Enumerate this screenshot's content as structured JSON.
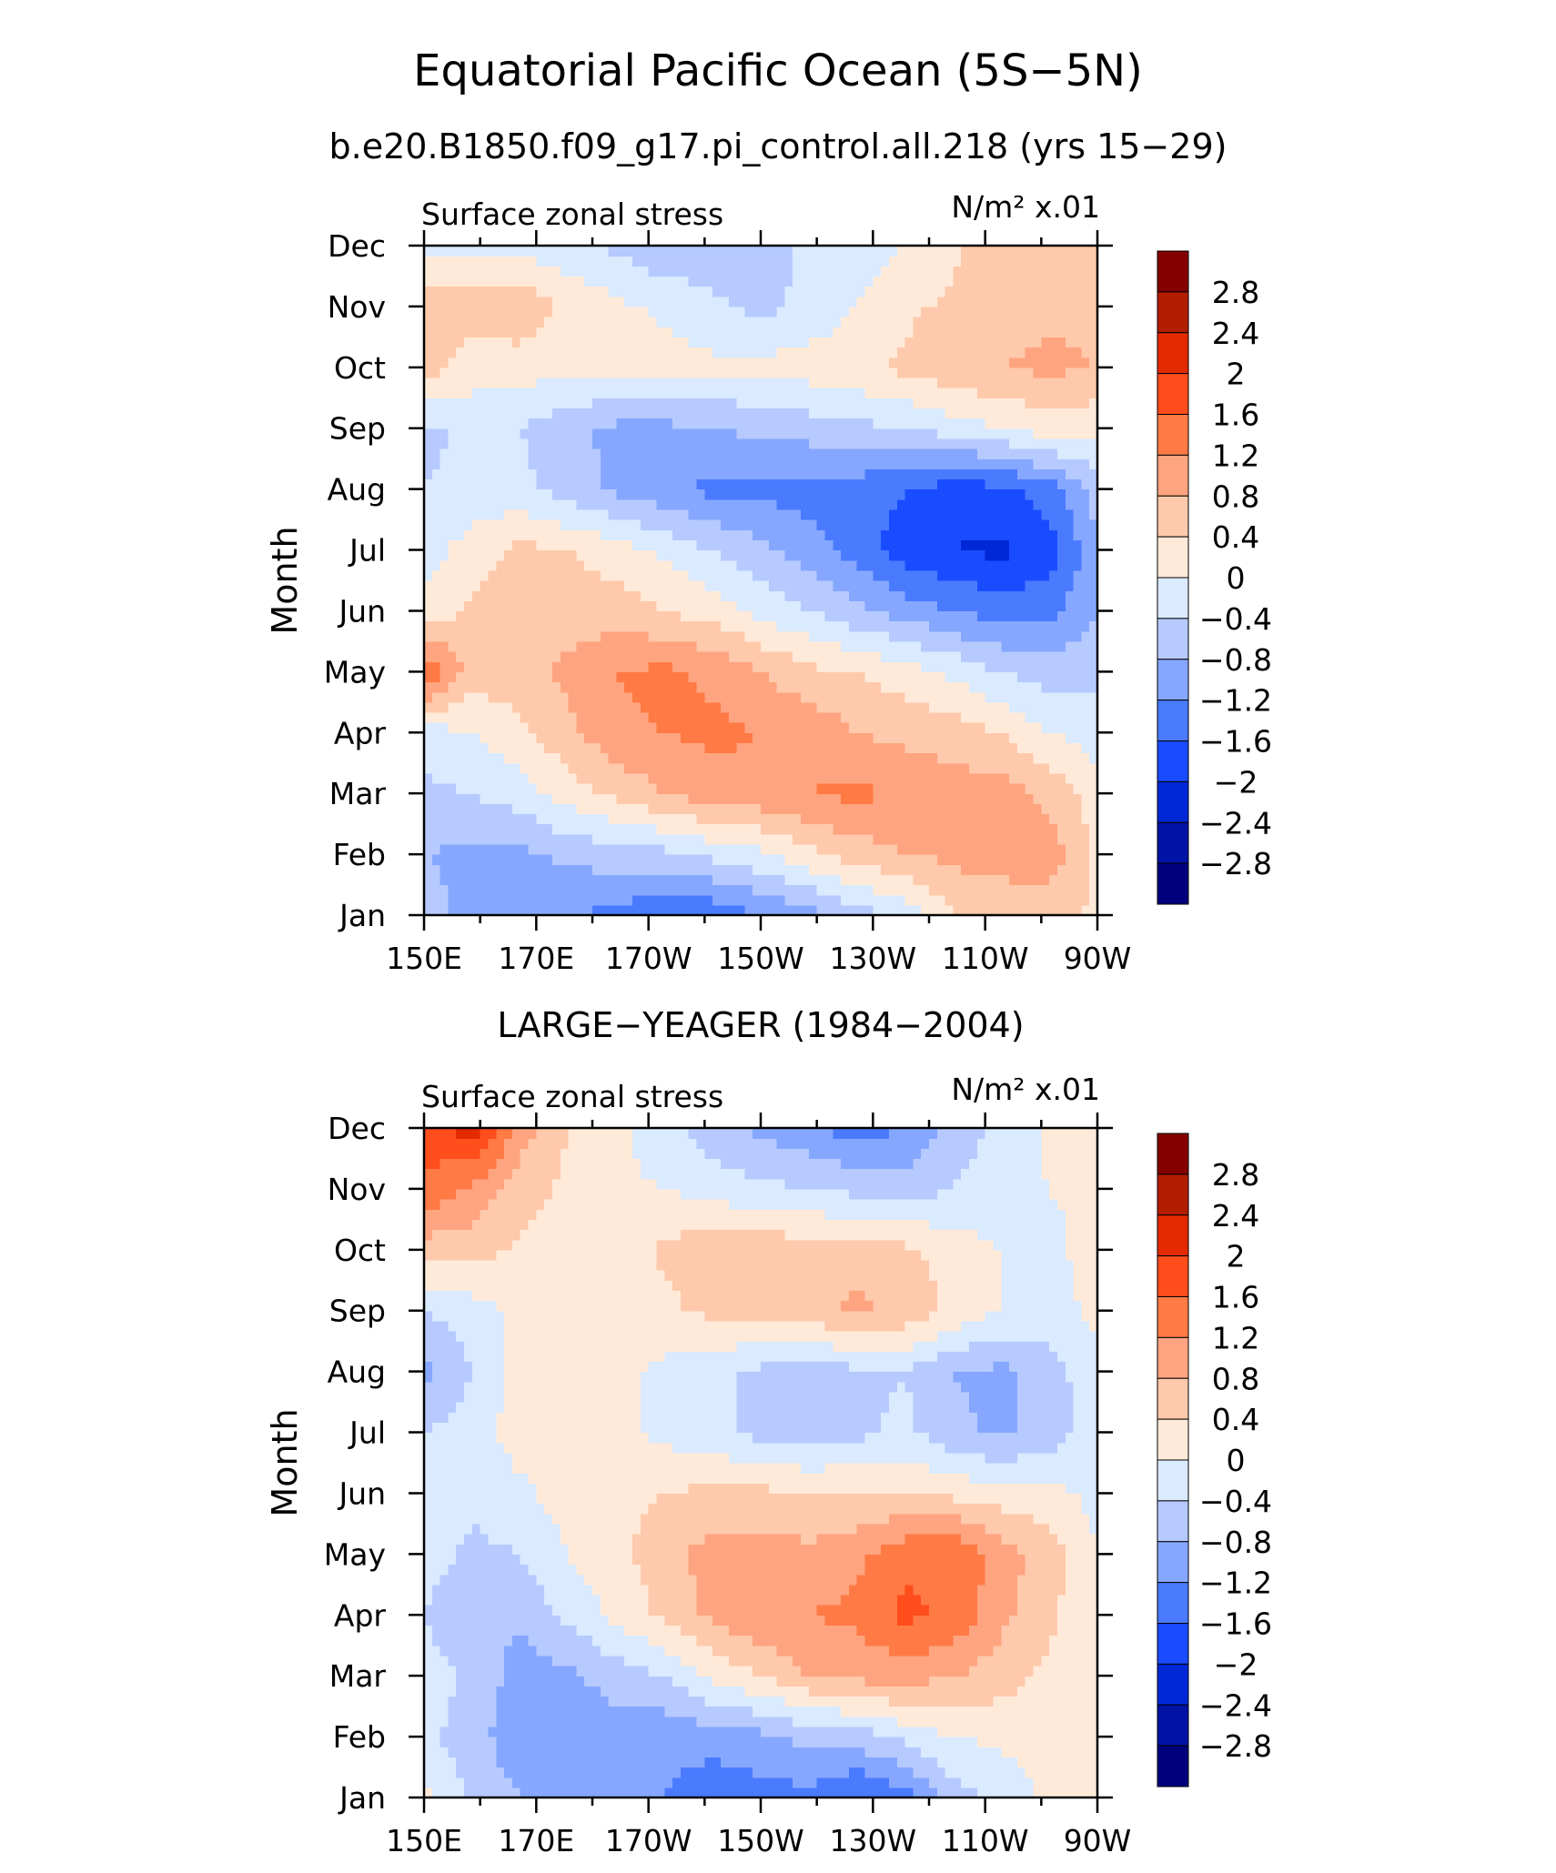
{
  "figure": {
    "title": "Equatorial Pacific Ocean (5S−5N)",
    "subtitle": "b.e20.B1850.f09_g17.pi_control.all.218 (yrs 15−29)"
  },
  "chart_data": [
    {
      "type": "heatmap",
      "panel_title": "",
      "left_label": "Surface zonal stress",
      "units": "N/m² x.01",
      "ylabel": "Month",
      "x_labels": [
        "150E",
        "170E",
        "170W",
        "150W",
        "130W",
        "110W",
        "90W"
      ],
      "y_labels": [
        "Jan",
        "Feb",
        "Mar",
        "Apr",
        "May",
        "Jun",
        "Jul",
        "Aug",
        "Sep",
        "Oct",
        "Nov",
        "Dec"
      ],
      "colorbar_labels": [
        "2.8",
        "2.4",
        "2",
        "1.6",
        "1.2",
        "0.8",
        "0.4",
        "0",
        "−0.4",
        "−0.8",
        "−1.2",
        "−1.6",
        "−2",
        "−2.4",
        "−2.8"
      ],
      "levels": [
        -2.8,
        -2.4,
        -2.0,
        -1.6,
        -1.2,
        -0.8,
        -0.4,
        0,
        0.4,
        0.8,
        1.2,
        1.6,
        2.0,
        2.4,
        2.8
      ],
      "z": [
        [
          -0.6,
          -1.0,
          -1.2,
          -1.2,
          -1.3,
          -1.6,
          -1.5,
          -1.2,
          -1.0,
          -0.6,
          -0.3,
          0.4,
          0.5,
          0.6,
          0.3
        ],
        [
          -0.8,
          -0.9,
          -0.9,
          -0.7,
          -0.6,
          -0.5,
          -0.3,
          -0.1,
          0.3,
          0.6,
          0.8,
          0.9,
          1.0,
          1.0,
          0.3
        ],
        [
          -0.5,
          -0.4,
          -0.2,
          0.2,
          0.5,
          0.8,
          1.0,
          1.1,
          1.2,
          1.3,
          1.1,
          1.0,
          1.0,
          0.7,
          0.2
        ],
        [
          -0.2,
          0.0,
          0.3,
          0.7,
          1.1,
          1.2,
          1.3,
          1.2,
          1.1,
          0.8,
          0.7,
          0.6,
          0.4,
          0.0,
          -0.2
        ],
        [
          1.6,
          0.6,
          0.6,
          0.9,
          1.2,
          1.3,
          1.1,
          0.8,
          0.5,
          0.4,
          0.2,
          -0.1,
          -0.4,
          -0.6,
          -0.5
        ],
        [
          0.1,
          0.5,
          0.6,
          0.6,
          0.6,
          0.4,
          0.2,
          -0.1,
          -0.4,
          -0.7,
          -1.0,
          -1.2,
          -1.4,
          -1.3,
          -0.8
        ],
        [
          -0.2,
          0.2,
          0.5,
          0.4,
          0.2,
          -0.1,
          -0.4,
          -0.7,
          -1.0,
          -1.4,
          -1.8,
          -2.0,
          -2.1,
          -1.8,
          -0.9
        ],
        [
          -0.4,
          -0.3,
          -0.3,
          -0.6,
          -0.9,
          -1.1,
          -1.3,
          -1.3,
          -1.4,
          -1.4,
          -1.6,
          -1.8,
          -1.7,
          -1.4,
          -0.6
        ],
        [
          -0.5,
          -0.3,
          -0.4,
          -0.7,
          -0.9,
          -0.9,
          -0.8,
          -0.7,
          -0.6,
          -0.5,
          -0.4,
          -0.2,
          0.0,
          0.2,
          0.1
        ],
        [
          0.6,
          0.2,
          0.2,
          0.1,
          0.2,
          0.2,
          0.1,
          0.1,
          0.2,
          0.3,
          0.5,
          0.7,
          0.8,
          0.9,
          0.8
        ],
        [
          0.7,
          0.6,
          0.7,
          0.3,
          0.1,
          -0.1,
          -0.3,
          -0.5,
          -0.3,
          0.0,
          0.3,
          0.5,
          0.6,
          0.7,
          0.7
        ],
        [
          -0.2,
          -0.1,
          -0.1,
          -0.3,
          -0.5,
          -0.7,
          -0.7,
          -0.6,
          -0.3,
          -0.2,
          0.0,
          0.3,
          0.7,
          0.7,
          0.7
        ]
      ]
    },
    {
      "type": "heatmap",
      "panel_title": "LARGE−YEAGER (1984−2004)",
      "left_label": "Surface zonal stress",
      "units": "N/m² x.01",
      "ylabel": "Month",
      "x_labels": [
        "150E",
        "170E",
        "170W",
        "150W",
        "130W",
        "110W",
        "90W"
      ],
      "y_labels": [
        "Jan",
        "Feb",
        "Mar",
        "Apr",
        "May",
        "Jun",
        "Jul",
        "Aug",
        "Sep",
        "Oct",
        "Nov",
        "Dec"
      ],
      "colorbar_labels": [
        "2.8",
        "2.4",
        "2",
        "1.6",
        "1.2",
        "0.8",
        "0.4",
        "0",
        "−0.4",
        "−0.8",
        "−1.2",
        "−1.6",
        "−2",
        "−2.4",
        "−2.8"
      ],
      "levels": [
        -2.8,
        -2.4,
        -2.0,
        -1.6,
        -1.2,
        -0.8,
        -0.4,
        0,
        0.4,
        0.8,
        1.2,
        1.6,
        2.0,
        2.4,
        2.8
      ],
      "z": [
        [
          0.1,
          -0.5,
          -0.8,
          -0.9,
          -1.0,
          -1.2,
          -1.5,
          -1.4,
          -1.3,
          -1.7,
          -1.4,
          -0.6,
          -0.3,
          0.1,
          0.2
        ],
        [
          -0.3,
          -0.6,
          -1.1,
          -1.1,
          -1.0,
          -1.1,
          -1.0,
          -0.9,
          -0.7,
          -0.6,
          -0.3,
          0.0,
          0.1,
          0.1,
          0.2
        ],
        [
          -0.2,
          -0.5,
          -1.0,
          -0.9,
          -0.6,
          -0.4,
          0.1,
          0.4,
          0.8,
          0.9,
          1.0,
          0.8,
          0.6,
          0.3,
          0.1
        ],
        [
          -0.4,
          -0.8,
          -0.7,
          -0.3,
          0.1,
          0.5,
          0.9,
          1.2,
          1.2,
          1.3,
          1.7,
          1.5,
          0.9,
          0.5,
          0.0
        ],
        [
          -0.2,
          -0.5,
          -0.4,
          0.0,
          0.3,
          0.6,
          1.0,
          1.0,
          0.9,
          1.1,
          1.5,
          1.6,
          1.0,
          0.6,
          0.0
        ],
        [
          -0.1,
          -0.3,
          -0.1,
          0.2,
          0.3,
          0.4,
          0.5,
          0.5,
          0.4,
          0.4,
          0.4,
          0.3,
          0.2,
          0.1,
          -0.1
        ],
        [
          -0.4,
          -0.2,
          0.2,
          0.2,
          0.1,
          -0.1,
          -0.3,
          -0.5,
          -0.6,
          -0.5,
          -0.3,
          -0.7,
          -0.9,
          -0.6,
          -0.2
        ],
        [
          -0.9,
          -0.4,
          0.2,
          0.2,
          0.1,
          -0.1,
          -0.3,
          -0.5,
          -0.6,
          -0.5,
          -0.4,
          -0.8,
          -0.9,
          -0.6,
          -0.1
        ],
        [
          -0.4,
          -0.2,
          0.1,
          0.2,
          0.1,
          0.3,
          0.5,
          0.6,
          0.6,
          0.9,
          0.7,
          0.3,
          0.0,
          -0.2,
          0.1
        ],
        [
          0.6,
          0.6,
          0.3,
          0.2,
          0.1,
          0.5,
          0.7,
          0.7,
          0.6,
          0.6,
          0.5,
          0.2,
          0.0,
          -0.2,
          0.3
        ],
        [
          1.5,
          1.1,
          0.6,
          0.3,
          0.1,
          0.0,
          -0.2,
          -0.3,
          -0.4,
          -0.5,
          -0.6,
          -0.4,
          -0.2,
          0.0,
          0.2
        ],
        [
          1.8,
          2.2,
          1.0,
          0.4,
          0.1,
          -0.3,
          -0.6,
          -0.9,
          -1.1,
          -1.4,
          -1.2,
          -0.6,
          -0.3,
          0.1,
          0.2
        ]
      ]
    }
  ],
  "colors": {
    "palette": [
      "#00007d",
      "#0013a4",
      "#0028d6",
      "#1a4cff",
      "#4a7bff",
      "#86a7ff",
      "#b6caff",
      "#daeaff",
      "#ffead9",
      "#ffc9ab",
      "#ffa480",
      "#ff7a45",
      "#ff4d1c",
      "#e32a00",
      "#b31d00",
      "#840000"
    ]
  }
}
